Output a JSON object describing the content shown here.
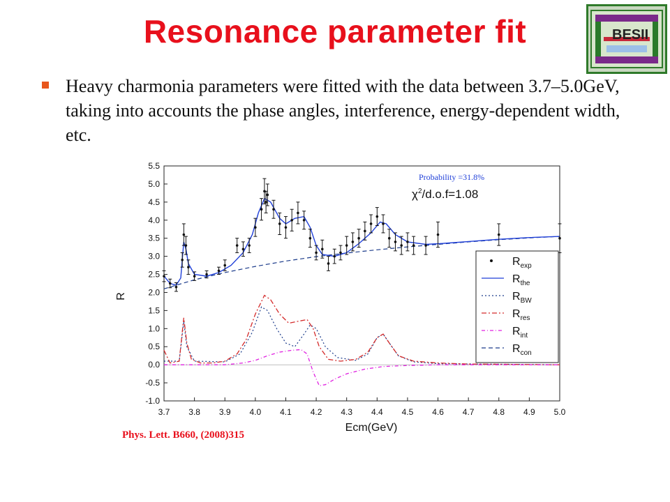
{
  "slide": {
    "title": "Resonance parameter fit",
    "bullet": "Heavy charmonia parameters were fitted with the data between 3.7–5.0GeV, taking into accounts the phase angles, interference, energy-dependent width, etc.",
    "citation": "Phys. Lett. B660, (2008)315",
    "logo_text": "BESII"
  },
  "colors": {
    "title": "#e8101c",
    "bullet": "#e8561c",
    "r_the": "#1f3fd8",
    "r_bw": "#1a3a8a",
    "r_res": "#d42a2a",
    "r_int": "#e020e0",
    "r_con": "#1a3a8a"
  },
  "chart_data": {
    "type": "line",
    "xlabel": "Ecm(GeV)",
    "ylabel": "R",
    "xlim": [
      3.7,
      5.0
    ],
    "ylim": [
      -1.0,
      5.5
    ],
    "xticks": [
      "3.7",
      "3.8",
      "3.9",
      "4.0",
      "4.1",
      "4.2",
      "4.3",
      "4.4",
      "4.5",
      "4.6",
      "4.7",
      "4.8",
      "4.9",
      "5.0"
    ],
    "yticks": [
      "-1.0",
      "-0.5",
      "0.0",
      "0.5",
      "1.0",
      "1.5",
      "2.0",
      "2.5",
      "3.0",
      "3.5",
      "4.0",
      "4.5",
      "5.0",
      "5.5"
    ],
    "annotations": {
      "probability": "Probability =31.8%",
      "chi2_prefix": "χ",
      "chi2_suffix": "/d.o.f=1.08",
      "chi2_sup": "2"
    },
    "legend": {
      "position": "right",
      "entries": [
        {
          "base": "R",
          "sub": "exp",
          "style": "point"
        },
        {
          "base": "R",
          "sub": "the",
          "style": "solid"
        },
        {
          "base": "R",
          "sub": "BW",
          "style": "dotted"
        },
        {
          "base": "R",
          "sub": "res",
          "style": "dashdot"
        },
        {
          "base": "R",
          "sub": "int",
          "style": "dashdot2"
        },
        {
          "base": "R",
          "sub": "con",
          "style": "dashed"
        }
      ]
    },
    "data_points": [
      {
        "x": 3.7,
        "y": 2.45,
        "e": 0.15
      },
      {
        "x": 3.72,
        "y": 2.25,
        "e": 0.12
      },
      {
        "x": 3.74,
        "y": 2.15,
        "e": 0.12
      },
      {
        "x": 3.76,
        "y": 2.9,
        "e": 0.2
      },
      {
        "x": 3.765,
        "y": 3.6,
        "e": 0.3
      },
      {
        "x": 3.772,
        "y": 3.3,
        "e": 0.25
      },
      {
        "x": 3.78,
        "y": 2.7,
        "e": 0.2
      },
      {
        "x": 3.8,
        "y": 2.45,
        "e": 0.12
      },
      {
        "x": 3.84,
        "y": 2.5,
        "e": 0.1
      },
      {
        "x": 3.88,
        "y": 2.6,
        "e": 0.1
      },
      {
        "x": 3.9,
        "y": 2.75,
        "e": 0.15
      },
      {
        "x": 3.94,
        "y": 3.3,
        "e": 0.2
      },
      {
        "x": 3.96,
        "y": 3.2,
        "e": 0.2
      },
      {
        "x": 3.98,
        "y": 3.3,
        "e": 0.2
      },
      {
        "x": 4.0,
        "y": 3.8,
        "e": 0.25
      },
      {
        "x": 4.02,
        "y": 4.3,
        "e": 0.3
      },
      {
        "x": 4.03,
        "y": 4.8,
        "e": 0.35
      },
      {
        "x": 4.035,
        "y": 4.5,
        "e": 0.3
      },
      {
        "x": 4.04,
        "y": 4.7,
        "e": 0.3
      },
      {
        "x": 4.06,
        "y": 4.3,
        "e": 0.25
      },
      {
        "x": 4.08,
        "y": 3.9,
        "e": 0.3
      },
      {
        "x": 4.1,
        "y": 3.8,
        "e": 0.3
      },
      {
        "x": 4.12,
        "y": 4.0,
        "e": 0.3
      },
      {
        "x": 4.14,
        "y": 4.2,
        "e": 0.3
      },
      {
        "x": 4.16,
        "y": 4.0,
        "e": 0.25
      },
      {
        "x": 4.18,
        "y": 3.5,
        "e": 0.25
      },
      {
        "x": 4.2,
        "y": 3.1,
        "e": 0.2
      },
      {
        "x": 4.22,
        "y": 3.2,
        "e": 0.25
      },
      {
        "x": 4.24,
        "y": 2.8,
        "e": 0.2
      },
      {
        "x": 4.26,
        "y": 3.0,
        "e": 0.2
      },
      {
        "x": 4.28,
        "y": 3.1,
        "e": 0.2
      },
      {
        "x": 4.3,
        "y": 3.3,
        "e": 0.25
      },
      {
        "x": 4.32,
        "y": 3.4,
        "e": 0.25
      },
      {
        "x": 4.34,
        "y": 3.5,
        "e": 0.25
      },
      {
        "x": 4.36,
        "y": 3.7,
        "e": 0.25
      },
      {
        "x": 4.38,
        "y": 3.9,
        "e": 0.25
      },
      {
        "x": 4.4,
        "y": 4.1,
        "e": 0.25
      },
      {
        "x": 4.42,
        "y": 3.9,
        "e": 0.25
      },
      {
        "x": 4.44,
        "y": 3.5,
        "e": 0.25
      },
      {
        "x": 4.46,
        "y": 3.4,
        "e": 0.25
      },
      {
        "x": 4.48,
        "y": 3.3,
        "e": 0.25
      },
      {
        "x": 4.5,
        "y": 3.4,
        "e": 0.25
      },
      {
        "x": 4.52,
        "y": 3.3,
        "e": 0.25
      },
      {
        "x": 4.56,
        "y": 3.3,
        "e": 0.25
      },
      {
        "x": 4.6,
        "y": 3.6,
        "e": 0.35
      },
      {
        "x": 4.8,
        "y": 3.6,
        "e": 0.3
      },
      {
        "x": 5.0,
        "y": 3.5,
        "e": 0.4
      }
    ],
    "curves": {
      "r_con": [
        [
          3.7,
          2.1
        ],
        [
          3.8,
          2.35
        ],
        [
          3.9,
          2.55
        ],
        [
          4.0,
          2.72
        ],
        [
          4.1,
          2.87
        ],
        [
          4.2,
          2.99
        ],
        [
          4.3,
          3.09
        ],
        [
          4.4,
          3.18
        ],
        [
          4.5,
          3.26
        ],
        [
          4.6,
          3.33
        ],
        [
          4.7,
          3.4
        ],
        [
          4.8,
          3.46
        ],
        [
          4.9,
          3.51
        ],
        [
          5.0,
          3.55
        ]
      ],
      "r_the": [
        [
          3.7,
          2.45
        ],
        [
          3.72,
          2.25
        ],
        [
          3.74,
          2.2
        ],
        [
          3.755,
          2.4
        ],
        [
          3.765,
          3.4
        ],
        [
          3.772,
          3.2
        ],
        [
          3.78,
          2.8
        ],
        [
          3.8,
          2.5
        ],
        [
          3.84,
          2.45
        ],
        [
          3.88,
          2.55
        ],
        [
          3.92,
          2.75
        ],
        [
          3.96,
          3.1
        ],
        [
          3.99,
          3.6
        ],
        [
          4.01,
          4.2
        ],
        [
          4.03,
          4.6
        ],
        [
          4.05,
          4.5
        ],
        [
          4.08,
          4.05
        ],
        [
          4.1,
          3.9
        ],
        [
          4.13,
          4.05
        ],
        [
          4.16,
          4.1
        ],
        [
          4.18,
          3.8
        ],
        [
          4.2,
          3.3
        ],
        [
          4.22,
          3.05
        ],
        [
          4.26,
          3.0
        ],
        [
          4.3,
          3.1
        ],
        [
          4.34,
          3.35
        ],
        [
          4.38,
          3.65
        ],
        [
          4.41,
          3.95
        ],
        [
          4.43,
          3.9
        ],
        [
          4.46,
          3.6
        ],
        [
          4.5,
          3.4
        ],
        [
          4.56,
          3.33
        ],
        [
          4.62,
          3.36
        ],
        [
          4.7,
          3.41
        ],
        [
          4.8,
          3.47
        ],
        [
          4.9,
          3.52
        ],
        [
          5.0,
          3.55
        ]
      ],
      "r_res": [
        [
          3.7,
          0.4
        ],
        [
          3.72,
          0.05
        ],
        [
          3.75,
          0.1
        ],
        [
          3.765,
          1.3
        ],
        [
          3.775,
          0.6
        ],
        [
          3.79,
          0.15
        ],
        [
          3.82,
          0.05
        ],
        [
          3.86,
          0.05
        ],
        [
          3.9,
          0.1
        ],
        [
          3.94,
          0.3
        ],
        [
          3.97,
          0.7
        ],
        [
          4.0,
          1.4
        ],
        [
          4.03,
          1.92
        ],
        [
          4.05,
          1.8
        ],
        [
          4.08,
          1.4
        ],
        [
          4.11,
          1.15
        ],
        [
          4.14,
          1.2
        ],
        [
          4.17,
          1.25
        ],
        [
          4.19,
          1.0
        ],
        [
          4.21,
          0.5
        ],
        [
          4.24,
          0.15
        ],
        [
          4.28,
          0.1
        ],
        [
          4.33,
          0.15
        ],
        [
          4.37,
          0.35
        ],
        [
          4.4,
          0.75
        ],
        [
          4.42,
          0.85
        ],
        [
          4.44,
          0.6
        ],
        [
          4.47,
          0.25
        ],
        [
          4.52,
          0.1
        ],
        [
          4.6,
          0.05
        ],
        [
          4.7,
          0.02
        ],
        [
          5.0,
          0.0
        ]
      ],
      "r_bw": [
        [
          3.7,
          0.1
        ],
        [
          3.75,
          0.1
        ],
        [
          3.765,
          1.2
        ],
        [
          3.775,
          0.5
        ],
        [
          3.8,
          0.1
        ],
        [
          3.9,
          0.08
        ],
        [
          3.95,
          0.3
        ],
        [
          3.99,
          0.9
        ],
        [
          4.02,
          1.6
        ],
        [
          4.04,
          1.5
        ],
        [
          4.07,
          1.0
        ],
        [
          4.1,
          0.6
        ],
        [
          4.13,
          0.5
        ],
        [
          4.16,
          0.85
        ],
        [
          4.18,
          1.1
        ],
        [
          4.2,
          1.0
        ],
        [
          4.23,
          0.5
        ],
        [
          4.27,
          0.2
        ],
        [
          4.33,
          0.12
        ],
        [
          4.37,
          0.3
        ],
        [
          4.4,
          0.75
        ],
        [
          4.42,
          0.85
        ],
        [
          4.44,
          0.6
        ],
        [
          4.47,
          0.25
        ],
        [
          4.52,
          0.08
        ],
        [
          4.6,
          0.03
        ],
        [
          5.0,
          0.0
        ]
      ],
      "r_int": [
        [
          3.7,
          0.0
        ],
        [
          3.9,
          0.0
        ],
        [
          3.96,
          0.05
        ],
        [
          4.0,
          0.12
        ],
        [
          4.04,
          0.25
        ],
        [
          4.08,
          0.35
        ],
        [
          4.12,
          0.4
        ],
        [
          4.15,
          0.42
        ],
        [
          4.17,
          0.3
        ],
        [
          4.19,
          -0.2
        ],
        [
          4.21,
          -0.58
        ],
        [
          4.23,
          -0.55
        ],
        [
          4.26,
          -0.4
        ],
        [
          4.3,
          -0.25
        ],
        [
          4.36,
          -0.12
        ],
        [
          4.42,
          -0.05
        ],
        [
          4.5,
          -0.02
        ],
        [
          4.6,
          0.0
        ],
        [
          5.0,
          0.0
        ]
      ]
    }
  }
}
